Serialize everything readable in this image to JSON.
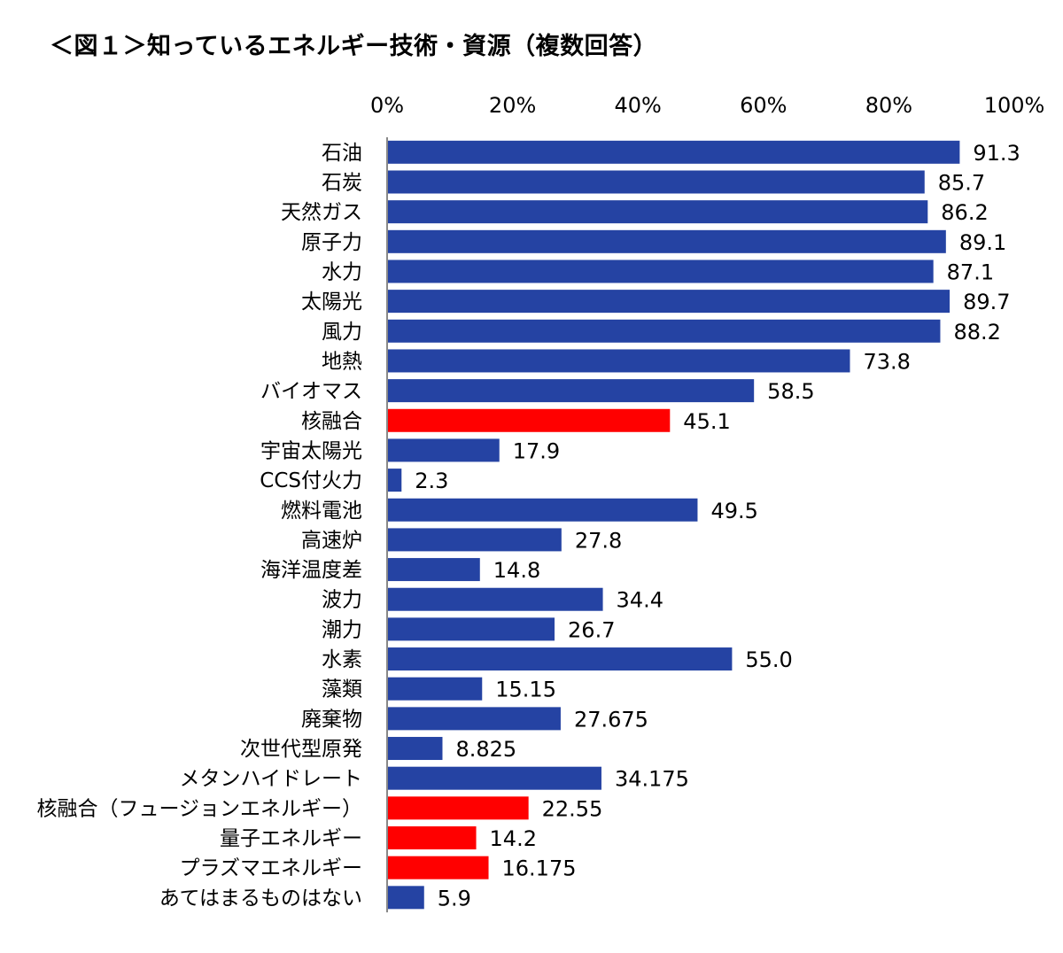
{
  "title": "＜図１＞知っているエネルギー技術・資源（複数回答）",
  "colors": {
    "normal": "#2543a3",
    "highlight": "#ff0000",
    "axis": "#888888"
  },
  "chart_data": {
    "type": "bar",
    "orientation": "horizontal",
    "title": "＜図１＞知っているエネルギー技術・資源（複数回答）",
    "xlim": [
      0,
      100
    ],
    "x_ticks": [
      "0%",
      "20%",
      "40%",
      "60%",
      "80%",
      "100%"
    ],
    "x_tick_values": [
      0,
      20,
      40,
      60,
      80,
      100
    ],
    "grid": false,
    "categories": [
      "石油",
      "石炭",
      "天然ガス",
      "原子力",
      "水力",
      "太陽光",
      "風力",
      "地熱",
      "バイオマス",
      "核融合",
      "宇宙太陽光",
      "CCS付火力",
      "燃料電池",
      "高速炉",
      "海洋温度差",
      "波力",
      "潮力",
      "水素",
      "藻類",
      "廃棄物",
      "次世代型原発",
      "メタンハイドレート",
      "核融合（フュージョンエネルギー）",
      "量子エネルギー",
      "プラズマエネルギー",
      "あてはまるものはない"
    ],
    "values": [
      91.3,
      85.7,
      86.2,
      89.1,
      87.1,
      89.7,
      88.2,
      73.8,
      58.5,
      45.1,
      17.9,
      2.3,
      49.5,
      27.8,
      14.8,
      34.4,
      26.7,
      55.0,
      15.15,
      27.675,
      8.825,
      34.175,
      22.55,
      14.2,
      16.175,
      5.9
    ],
    "labels": [
      "91.3",
      "85.7",
      "86.2",
      "89.1",
      "87.1",
      "89.7",
      "88.2",
      "73.8",
      "58.5",
      "45.1",
      "17.9",
      "2.3",
      "49.5",
      "27.8",
      "14.8",
      "34.4",
      "26.7",
      "55.0",
      "15.15",
      "27.675",
      "8.825",
      "34.175",
      "22.55",
      "14.2",
      "16.175",
      "5.9"
    ],
    "highlighted": [
      false,
      false,
      false,
      false,
      false,
      false,
      false,
      false,
      false,
      true,
      false,
      false,
      false,
      false,
      false,
      false,
      false,
      false,
      false,
      false,
      false,
      false,
      true,
      true,
      true,
      false
    ]
  }
}
